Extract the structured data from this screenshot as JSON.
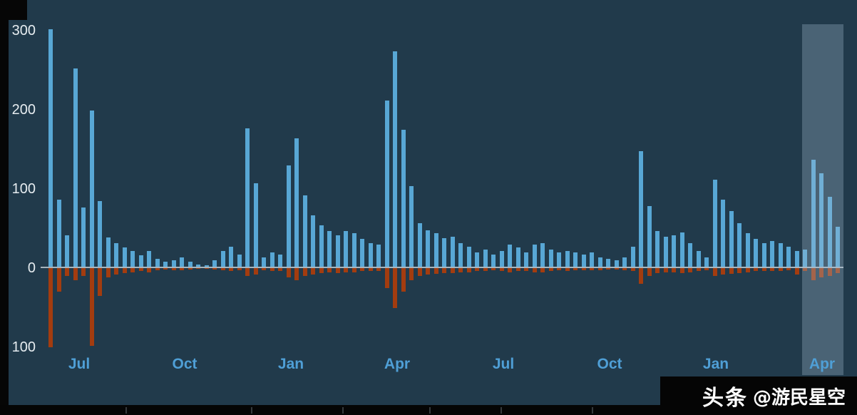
{
  "watermark": {
    "brand": "头条",
    "handle": "@游民星空"
  },
  "colors": {
    "background": "#213a4b",
    "frame": "#060606",
    "positive_bar": "#58a7d5",
    "negative_bar": "#a33c0f",
    "baseline": "#a7b4bc",
    "y_label": "#e6ecf0",
    "month_label": "#4f9fd6",
    "highlight": "rgba(168,196,214,0.30)"
  },
  "chart_data": {
    "type": "bar",
    "title": "",
    "xlabel": "",
    "ylabel": "",
    "ylim": [
      -110,
      310
    ],
    "grid": false,
    "y_ticks": [
      {
        "label": "300",
        "value": 300
      },
      {
        "label": "200",
        "value": 200
      },
      {
        "label": "100",
        "value": 100
      },
      {
        "label": "0",
        "value": 0
      },
      {
        "label": "100",
        "value": -100
      }
    ],
    "x_tick_labels": [
      "Jul",
      "Oct",
      "Jan",
      "Apr",
      "Jul",
      "Oct",
      "Jan",
      "Apr"
    ],
    "series": [
      {
        "name": "positive",
        "values": [
          300,
          85,
          40,
          250,
          75,
          197,
          83,
          37,
          30,
          24,
          20,
          14,
          20,
          10,
          6,
          8,
          12,
          6,
          3,
          2,
          8,
          20,
          25,
          15,
          175,
          105,
          12,
          18,
          15,
          128,
          162,
          90,
          65,
          52,
          45,
          40,
          45,
          42,
          35,
          30,
          28,
          210,
          272,
          173,
          102,
          55,
          46,
          42,
          36,
          38,
          30,
          25,
          18,
          22,
          15,
          20,
          28,
          24,
          18,
          28,
          30,
          22,
          18,
          20,
          18,
          15,
          18,
          12,
          10,
          8,
          12,
          25,
          146,
          77,
          45,
          38,
          40,
          43,
          30,
          20,
          12,
          110,
          85,
          70,
          55,
          42,
          35,
          30,
          32,
          30,
          25,
          20,
          22,
          135,
          118,
          88,
          50
        ]
      },
      {
        "name": "negative",
        "values": [
          -100,
          -30,
          -10,
          -15,
          -10,
          -98,
          -35,
          -12,
          -8,
          -6,
          -5,
          -4,
          -5,
          -3,
          -2,
          -3,
          -3,
          -2,
          -1,
          -1,
          -2,
          -3,
          -4,
          -3,
          -10,
          -8,
          -3,
          -4,
          -4,
          -12,
          -15,
          -10,
          -8,
          -6,
          -5,
          -6,
          -5,
          -5,
          -4,
          -4,
          -4,
          -25,
          -50,
          -30,
          -15,
          -10,
          -8,
          -7,
          -6,
          -6,
          -5,
          -5,
          -4,
          -4,
          -3,
          -4,
          -5,
          -4,
          -4,
          -5,
          -5,
          -4,
          -3,
          -4,
          -3,
          -3,
          -3,
          -3,
          -2,
          -2,
          -3,
          -4,
          -20,
          -10,
          -6,
          -5,
          -5,
          -6,
          -5,
          -4,
          -3,
          -10,
          -8,
          -7,
          -6,
          -5,
          -4,
          -4,
          -4,
          -4,
          -3,
          -8,
          -4,
          -15,
          -12,
          -10,
          -6
        ]
      }
    ],
    "highlight_region": {
      "start_index": 93,
      "end_index": 96
    }
  }
}
